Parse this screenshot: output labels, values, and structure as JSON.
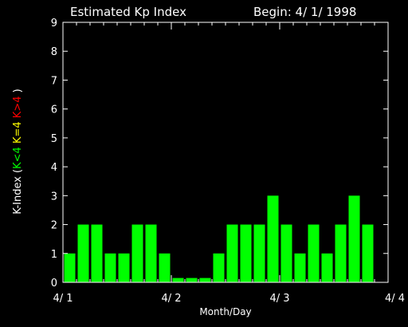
{
  "chart_data": {
    "type": "bar",
    "title": "Estimated Kp Index",
    "subtitle": "Begin: 4/ 1/ 1998",
    "xlabel": "Month/Day",
    "ylabel_parts": [
      {
        "text": "K-Index (",
        "color": "#ffffff"
      },
      {
        "text": "K<4",
        "color": "#00ff00"
      },
      {
        "text": " ",
        "color": "#ffffff"
      },
      {
        "text": "K=4",
        "color": "#ffff00"
      },
      {
        "text": " ",
        "color": "#ffffff"
      },
      {
        "text": "K>4",
        "color": "#ff0000"
      },
      {
        "text": " )",
        "color": "#ffffff"
      }
    ],
    "ylim": [
      0,
      9
    ],
    "xlim": [
      0,
      24
    ],
    "y_ticks": [
      0,
      1,
      2,
      3,
      4,
      5,
      6,
      7,
      8,
      9
    ],
    "x_ticks": [
      {
        "pos": 0,
        "label": "4/ 1"
      },
      {
        "pos": 8,
        "label": "4/ 2"
      },
      {
        "pos": 16,
        "label": "4/ 3"
      },
      {
        "pos": 24,
        "label": "4/ 4"
      }
    ],
    "values": [
      1,
      2,
      2,
      1,
      1,
      2,
      2,
      1,
      0.15,
      0.15,
      0.15,
      1,
      2,
      2,
      2,
      3,
      2,
      1,
      2,
      1,
      2,
      3,
      2
    ],
    "colors": {
      "below4": "#00ff00",
      "equal4": "#ffff00",
      "above4": "#ff0000",
      "axis": "#ffffff",
      "background": "#000000"
    }
  }
}
